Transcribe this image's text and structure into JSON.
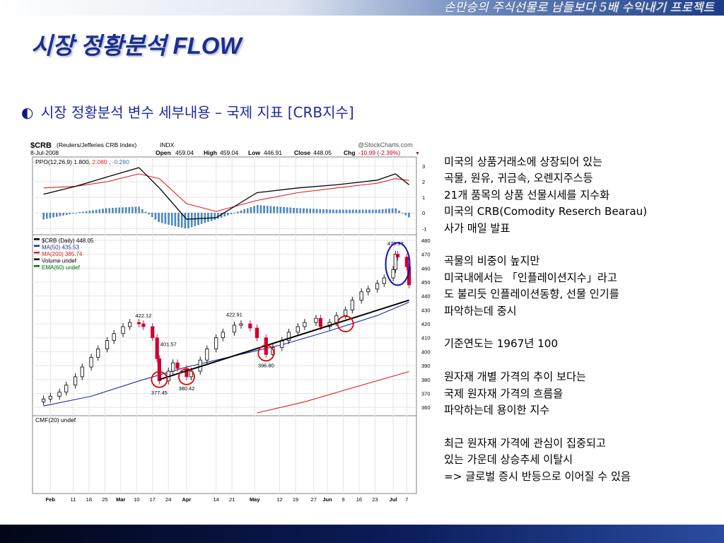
{
  "header": {
    "caption": "손만승의 주식선물로 남들보다 5배 수익내기 프로젝트",
    "title": "시장 정황분석 FLOW"
  },
  "subtitle": {
    "bullet": "◐",
    "text": "시장 정황분석 변수 세부내용 – 국제 지표 [CRB지수]"
  },
  "chart_header": {
    "symbol": "$CRB",
    "name": "(Reuters/Jefferies CRB Index)",
    "exchange": "INDX",
    "source": "@StockCharts.com",
    "date": "8-Jul-2008",
    "open_label": "Open",
    "open": "459.04",
    "high_label": "High",
    "high": "459.04",
    "low_label": "Low",
    "low": "446.91",
    "close_label": "Close",
    "close": "448.05",
    "chg_label": "Chg",
    "chg": "-10.99 (-2.39%)",
    "chg_arrow": "▼"
  },
  "ppo_panel": {
    "legend_prefix": "PPO(12,26,9) 1.800,",
    "legend_red": "2.080",
    "legend_sep": ",",
    "legend_blue": "-0.280",
    "y_ticks": [
      "3",
      "2",
      "1",
      "0",
      "-1"
    ]
  },
  "price_panel": {
    "legend": [
      {
        "text": "$CRB (Daily) 448.05",
        "color": "#000000"
      },
      {
        "text": "MA(50) 435.53",
        "color": "#1a2aa8"
      },
      {
        "text": "MA(200) 385.74",
        "color": "#e02020"
      },
      {
        "text": "Volume undef",
        "color": "#000000"
      },
      {
        "text": "EMA(60) undef",
        "color": "#007000"
      }
    ],
    "y_ticks": [
      "480",
      "470",
      "460",
      "450",
      "440",
      "430",
      "420",
      "410",
      "400",
      "390",
      "380",
      "370",
      "360"
    ]
  },
  "cmf_panel": {
    "legend": "CMF(20) undef"
  },
  "x_ticks": [
    {
      "label": "Feb",
      "bold": true
    },
    {
      "label": "11"
    },
    {
      "label": "18"
    },
    {
      "label": "25"
    },
    {
      "label": "Mar",
      "bold": true
    },
    {
      "label": "10"
    },
    {
      "label": "17"
    },
    {
      "label": "24"
    },
    {
      "label": "Apr",
      "bold": true
    },
    {
      "label": "14"
    },
    {
      "label": "21"
    },
    {
      "label": "May",
      "bold": true
    },
    {
      "label": "12"
    },
    {
      "label": "19"
    },
    {
      "label": "27"
    },
    {
      "label": "Jun",
      "bold": true
    },
    {
      "label": "9"
    },
    {
      "label": "16"
    },
    {
      "label": "23"
    },
    {
      "label": "Jul",
      "bold": true
    },
    {
      "label": "7"
    }
  ],
  "chart_data": {
    "type": "line",
    "title": "$CRB (Reuters/Jefferies CRB Index)",
    "ylim": [
      355,
      482
    ],
    "annotations": [
      {
        "label": "422.12",
        "date": "2008-03-13",
        "value": 422.12
      },
      {
        "label": "401.57",
        "date": "2008-03-24",
        "value": 401.57
      },
      {
        "label": "377.45",
        "date": "2008-03-20",
        "value": 377.45
      },
      {
        "label": "380.42",
        "date": "2008-04-01",
        "value": 380.42
      },
      {
        "label": "422.91",
        "date": "2008-04-22",
        "value": 422.91
      },
      {
        "label": "396.80",
        "date": "2008-05-06",
        "value": 396.8
      },
      {
        "label": "473.97",
        "date": "2008-07-02",
        "value": 473.97
      }
    ],
    "close_series": {
      "name": "$CRB (Daily)",
      "x": [
        "2008-01-29",
        "2008-02-01",
        "2008-02-05",
        "2008-02-08",
        "2008-02-12",
        "2008-02-15",
        "2008-02-19",
        "2008-02-22",
        "2008-02-26",
        "2008-02-29",
        "2008-03-04",
        "2008-03-07",
        "2008-03-11",
        "2008-03-13",
        "2008-03-17",
        "2008-03-19",
        "2008-03-20",
        "2008-03-24",
        "2008-03-26",
        "2008-03-28",
        "2008-04-01",
        "2008-04-03",
        "2008-04-07",
        "2008-04-10",
        "2008-04-14",
        "2008-04-17",
        "2008-04-22",
        "2008-04-25",
        "2008-04-29",
        "2008-05-02",
        "2008-05-06",
        "2008-05-09",
        "2008-05-13",
        "2008-05-16",
        "2008-05-20",
        "2008-05-23",
        "2008-05-28",
        "2008-05-30",
        "2008-06-03",
        "2008-06-06",
        "2008-06-10",
        "2008-06-13",
        "2008-06-17",
        "2008-06-20",
        "2008-06-24",
        "2008-06-27",
        "2008-07-01",
        "2008-07-02",
        "2008-07-03",
        "2008-07-07",
        "2008-07-08"
      ],
      "values": [
        366,
        368,
        371,
        376,
        382,
        389,
        396,
        402,
        408,
        413,
        418,
        421,
        420,
        418,
        410,
        395,
        379,
        386,
        392,
        388,
        382,
        386,
        394,
        402,
        410,
        414,
        419,
        420,
        417,
        410,
        398,
        403,
        408,
        414,
        418,
        421,
        424,
        418,
        421,
        426,
        430,
        437,
        443,
        445,
        449,
        453,
        459,
        470,
        468,
        461,
        448
      ]
    },
    "series": [
      {
        "name": "MA(50)",
        "x": [
          "2008-01-29",
          "2008-02-19",
          "2008-03-11",
          "2008-04-01",
          "2008-04-22",
          "2008-05-13",
          "2008-06-03",
          "2008-06-24",
          "2008-07-08"
        ],
        "values": [
          361,
          368,
          379,
          389,
          397,
          405,
          415,
          426,
          435.53
        ]
      },
      {
        "name": "MA(200)",
        "x": [
          "2008-05-02",
          "2008-05-23",
          "2008-06-13",
          "2008-07-08"
        ],
        "values": [
          356,
          364,
          374,
          385.74
        ]
      }
    ],
    "trendline": {
      "x": [
        "2008-03-20",
        "2008-07-08"
      ],
      "values": [
        380,
        437
      ]
    },
    "ppo": {
      "x": [
        "2008-01-29",
        "2008-02-12",
        "2008-02-26",
        "2008-03-11",
        "2008-03-20",
        "2008-04-01",
        "2008-04-14",
        "2008-05-02",
        "2008-05-20",
        "2008-06-06",
        "2008-06-24",
        "2008-07-02",
        "2008-07-08"
      ],
      "ppo": [
        1.2,
        1.7,
        2.3,
        2.9,
        1.6,
        -0.4,
        -0.3,
        1.3,
        1.6,
        1.8,
        2.1,
        2.5,
        1.8
      ],
      "signal": [
        1.6,
        1.7,
        2.0,
        2.5,
        2.2,
        0.6,
        0.1,
        0.8,
        1.3,
        1.6,
        1.9,
        2.2,
        2.08
      ]
    }
  },
  "side_text": {
    "paragraphs": [
      [
        "미국의 상품거래소에 상장되어 있는",
        "곡물, 원유, 귀금속, 오렌지주스등",
        "21개 품목의 상품 선물시세를 지수화",
        "미국의 CRB(Comodity Reserch Bearau)",
        "사가 매일 발표"
      ],
      [
        "곡물의 비중이 높지만",
        "미국내에서는 「인플레이션지수」라고",
        "도 불리듯 인플레이션동향, 선물 인기를",
        "파악하는데 중시"
      ],
      [
        "기준연도는 1967년 100"
      ],
      [
        "원자재 개별 가격의 추이 보다는",
        "국제 원자재 가격의 흐름을",
        "파악하는데 용이한 지수"
      ],
      [
        "최근 원자재 가격에 관심이 집중되고",
        "있는 가운데 상승추세 이탈시",
        "=> 글로벌 증시 반등으로 이어질 수 있음"
      ]
    ]
  },
  "colors": {
    "title": "#1c2e8e",
    "subtitle": "#1d2aa0",
    "ma50": "#1a2aa8",
    "ma200": "#e02020",
    "candle_up": "#000000",
    "candle_down": "#cc0033",
    "histogram": "#4a8cc8",
    "highlight_circle_red": "#e00000",
    "highlight_circle_blue": "#1010c0"
  }
}
